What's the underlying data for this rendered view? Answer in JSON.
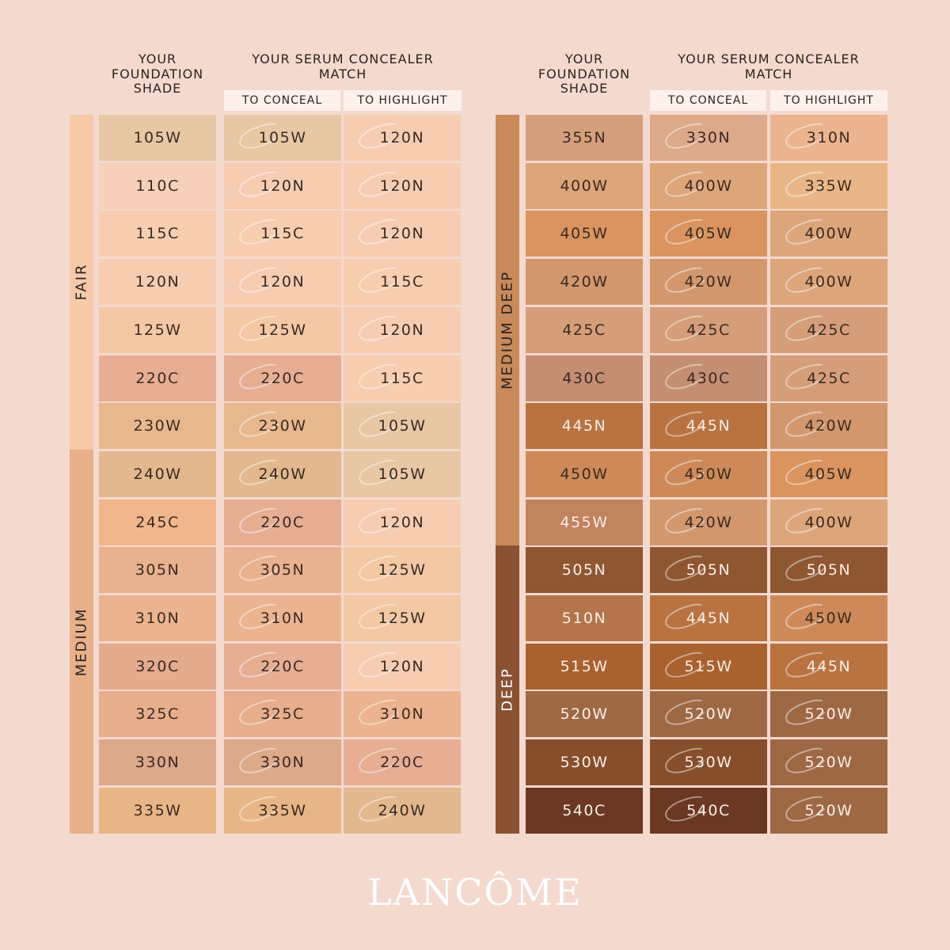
{
  "header": {
    "foundation_title": "YOUR\nFOUNDATION\nSHADE",
    "concealer_title": "YOUR SERUM CONCEALER\nMATCH",
    "to_conceal": "TO CONCEAL",
    "to_highlight": "TO HIGHLIGHT"
  },
  "brand": "LANCÔME",
  "left_groups": [
    {
      "label": "FAIR",
      "color": "#f6c9a9",
      "rows": 7
    },
    {
      "label": "MEDIUM",
      "color": "#e8b08a",
      "rows": 8
    }
  ],
  "right_groups": [
    {
      "label": "MEDIUM DEEP",
      "color": "#c98a5c",
      "rows": 9
    },
    {
      "label": "DEEP",
      "color": "#8a5132",
      "rows": 6
    }
  ],
  "left_rows": [
    {
      "foundation": "105W",
      "f_color": "#e8c7a4",
      "conceal": "105W",
      "c_color": "#e8c7a4",
      "highlight": "120N",
      "h_color": "#f7cdb2"
    },
    {
      "foundation": "110C",
      "f_color": "#f6d0b8",
      "conceal": "120N",
      "c_color": "#f7cdb2",
      "highlight": "120N",
      "h_color": "#f7cdb2"
    },
    {
      "foundation": "115C",
      "f_color": "#f7ceaf",
      "conceal": "115C",
      "c_color": "#f7ceaf",
      "highlight": "120N",
      "h_color": "#f7cdb2"
    },
    {
      "foundation": "120N",
      "f_color": "#f7cdb2",
      "conceal": "120N",
      "c_color": "#f7cdb2",
      "highlight": "115C",
      "h_color": "#f7ceaf"
    },
    {
      "foundation": "125W",
      "f_color": "#f3c8a4",
      "conceal": "125W",
      "c_color": "#f3c8a4",
      "highlight": "120N",
      "h_color": "#f7cdb2"
    },
    {
      "foundation": "220C",
      "f_color": "#e7ae94",
      "conceal": "220C",
      "c_color": "#e7ae94",
      "highlight": "115C",
      "h_color": "#f7ceaf"
    },
    {
      "foundation": "230W",
      "f_color": "#e7b88e",
      "conceal": "230W",
      "c_color": "#e7b88e",
      "highlight": "105W",
      "h_color": "#e8c7a4"
    },
    {
      "foundation": "240W",
      "f_color": "#e2b98f",
      "conceal": "240W",
      "c_color": "#e2b98f",
      "highlight": "105W",
      "h_color": "#e8c7a4"
    },
    {
      "foundation": "245C",
      "f_color": "#f2b68c",
      "conceal": "220C",
      "c_color": "#e7ae94",
      "highlight": "120N",
      "h_color": "#f7cdb2"
    },
    {
      "foundation": "305N",
      "f_color": "#e8b18f",
      "conceal": "305N",
      "c_color": "#e8b18f",
      "highlight": "125W",
      "h_color": "#f3c8a4"
    },
    {
      "foundation": "310N",
      "f_color": "#ebb38f",
      "conceal": "310N",
      "c_color": "#ebb38f",
      "highlight": "125W",
      "h_color": "#f3c8a4"
    },
    {
      "foundation": "320C",
      "f_color": "#e5ab8d",
      "conceal": "220C",
      "c_color": "#e7ae94",
      "highlight": "120N",
      "h_color": "#f7cdb2"
    },
    {
      "foundation": "325C",
      "f_color": "#e7ad8c",
      "conceal": "325C",
      "c_color": "#e7ad8c",
      "highlight": "310N",
      "h_color": "#ebb38f"
    },
    {
      "foundation": "330N",
      "f_color": "#dca98b",
      "conceal": "330N",
      "c_color": "#dca98b",
      "highlight": "220C",
      "h_color": "#e7ae94"
    },
    {
      "foundation": "335W",
      "f_color": "#e8b686",
      "conceal": "335W",
      "c_color": "#e8b686",
      "highlight": "240W",
      "h_color": "#e2b98f"
    }
  ],
  "right_rows": [
    {
      "foundation": "355N",
      "f_color": "#d59f7d",
      "conceal": "330N",
      "c_color": "#dca98b",
      "highlight": "310N",
      "h_color": "#ebb38f"
    },
    {
      "foundation": "400W",
      "f_color": "#dda57a",
      "conceal": "400W",
      "c_color": "#dda57a",
      "highlight": "335W",
      "h_color": "#e8b686"
    },
    {
      "foundation": "405W",
      "f_color": "#d9945f",
      "conceal": "405W",
      "c_color": "#d9945f",
      "highlight": "400W",
      "h_color": "#dda57a"
    },
    {
      "foundation": "420W",
      "f_color": "#d3976e",
      "conceal": "420W",
      "c_color": "#d3976e",
      "highlight": "400W",
      "h_color": "#dda57a"
    },
    {
      "foundation": "425C",
      "f_color": "#d59d79",
      "conceal": "425C",
      "c_color": "#d59d79",
      "highlight": "425C",
      "h_color": "#d59d79"
    },
    {
      "foundation": "430C",
      "f_color": "#c48e72",
      "conceal": "430C",
      "c_color": "#c48e72",
      "highlight": "425C",
      "h_color": "#d59d79"
    },
    {
      "foundation": "445N",
      "f_color": "#b87341",
      "conceal": "445N",
      "c_color": "#b87341",
      "highlight": "420W",
      "h_color": "#d3976e"
    },
    {
      "foundation": "450W",
      "f_color": "#cd8a58",
      "conceal": "450W",
      "c_color": "#cd8a58",
      "highlight": "405W",
      "h_color": "#d9945f"
    },
    {
      "foundation": "455W",
      "f_color": "#c2835f",
      "conceal": "420W",
      "c_color": "#d3976e",
      "highlight": "400W",
      "h_color": "#dda57a"
    },
    {
      "foundation": "505N",
      "f_color": "#8f5632",
      "conceal": "505N",
      "c_color": "#8f5632",
      "highlight": "505N",
      "h_color": "#8f5632"
    },
    {
      "foundation": "510N",
      "f_color": "#b4754a",
      "conceal": "445N",
      "c_color": "#b87341",
      "highlight": "450W",
      "h_color": "#cd8a58"
    },
    {
      "foundation": "515W",
      "f_color": "#a8612f",
      "conceal": "515W",
      "c_color": "#a8612f",
      "highlight": "445N",
      "h_color": "#b87341"
    },
    {
      "foundation": "520W",
      "f_color": "#9e6845",
      "conceal": "520W",
      "c_color": "#9e6845",
      "highlight": "520W",
      "h_color": "#9e6845"
    },
    {
      "foundation": "530W",
      "f_color": "#874e2b",
      "conceal": "530W",
      "c_color": "#874e2b",
      "highlight": "520W",
      "h_color": "#9e6845"
    },
    {
      "foundation": "540C",
      "f_color": "#6b3922",
      "conceal": "540C",
      "c_color": "#6b3922",
      "highlight": "520W",
      "h_color": "#9e6845"
    }
  ]
}
